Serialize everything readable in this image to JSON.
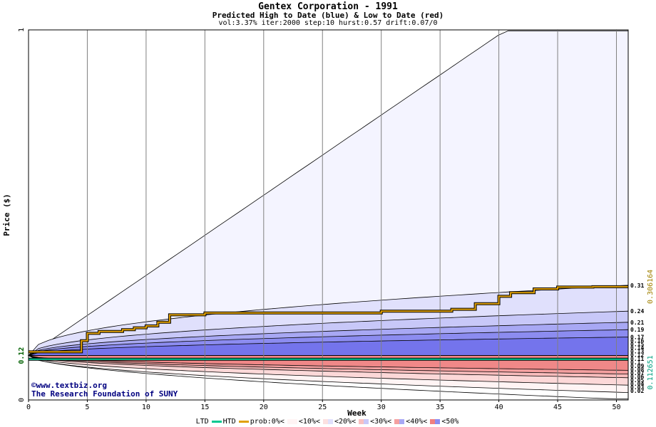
{
  "chart_data": {
    "type": "area",
    "title": "Gentex Corporation - 1991",
    "subtitle": "Predicted High to Date (blue) &  Low to Date (red)",
    "params": "vol:3.37% iter:2000 step:10 hurst:0.57 drift:0.07/0",
    "xlabel": "Week",
    "ylabel": "Price ($)",
    "xlim": [
      0,
      51
    ],
    "ylim": [
      0,
      1
    ],
    "x_ticks": [
      0,
      5,
      10,
      15,
      20,
      25,
      30,
      35,
      40,
      45,
      50
    ],
    "y_ticks": [
      "0",
      "0.12",
      "1"
    ],
    "grid": "vertical",
    "start_price": 0.12,
    "high_bands": [
      {
        "level": "0%",
        "color": "#f4f4ff",
        "values_end": 1.0
      },
      {
        "level": "10%",
        "color": "#e0e0fc",
        "values_end": 0.31
      },
      {
        "level": "20%",
        "color": "#c8c8f8",
        "values_end": 0.24
      },
      {
        "level": "30%",
        "color": "#a8a8f4",
        "values_end": 0.21
      },
      {
        "level": "40%",
        "color": "#8c8cf0",
        "values_end": 0.19
      },
      {
        "level": "50%",
        "color": "#7474ec",
        "values_end": 0.17
      }
    ],
    "low_bands": [
      {
        "level": "0%",
        "color": "#fff4f4",
        "values_end": 0.02
      },
      {
        "level": "10%",
        "color": "#fcd8d8",
        "values_end": 0.04
      },
      {
        "level": "20%",
        "color": "#f8bcbc",
        "values_end": 0.06
      },
      {
        "level": "30%",
        "color": "#f4a0a0",
        "values_end": 0.07
      },
      {
        "level": "40%",
        "color": "#f08888",
        "values_end": 0.08
      }
    ],
    "prob_line": {
      "name": "prob:0%",
      "color": "#e0a000",
      "x": [
        0,
        4,
        4.5,
        5,
        6,
        8,
        9,
        10,
        11,
        12,
        15,
        20,
        25,
        30,
        36,
        38,
        40,
        41,
        43,
        45,
        48,
        51
      ],
      "y": [
        0.13,
        0.13,
        0.16,
        0.18,
        0.185,
        0.19,
        0.195,
        0.2,
        0.21,
        0.23,
        0.235,
        0.235,
        0.235,
        0.24,
        0.245,
        0.26,
        0.28,
        0.29,
        0.3,
        0.305,
        0.306,
        0.306
      ]
    },
    "ltd_line": {
      "name": "LTD",
      "color": "#00c890",
      "value": 0.11
    },
    "right_labels_high": [
      "0.31",
      "0.24",
      "0.21",
      "0.19",
      "0.17",
      "0.16",
      "0.15",
      "0.14",
      "0.13",
      "0.12"
    ],
    "right_labels_low": [
      "0.11",
      "0.1",
      "0.09",
      "0.08",
      "0.07",
      "0.06",
      "0.05",
      "0.04",
      "0.03",
      "0.02"
    ],
    "side_values": [
      {
        "text": "0.306164",
        "color": "#a08000"
      },
      {
        "text": "0.112651",
        "color": "#00a080"
      }
    ]
  },
  "watermark": {
    "site": "www.textbiz.org",
    "org": "The Research Foundation of SUNY"
  },
  "legend": {
    "ltd": "LTD",
    "htd": "HTD",
    "prob": "prob:0%<",
    "b10": "<10%<",
    "b20": "<20%<",
    "b30": "<30%<",
    "b40": "<40%<",
    "b50": "<50%"
  }
}
